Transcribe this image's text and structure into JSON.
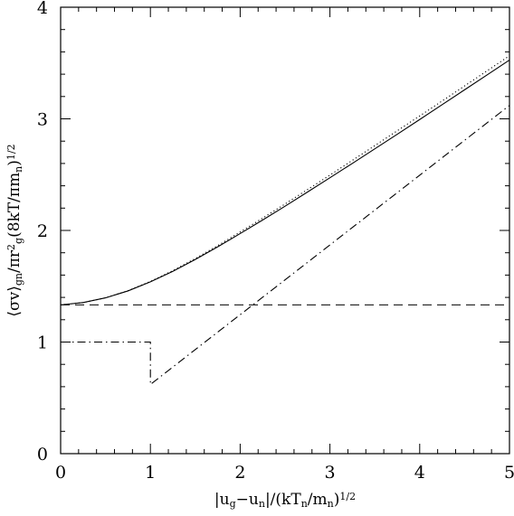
{
  "chart_data": {
    "type": "line",
    "title": "",
    "xlim": [
      0,
      5
    ],
    "ylim": [
      0,
      4
    ],
    "x_ticks": [
      0,
      1,
      2,
      3,
      4,
      5
    ],
    "y_ticks": [
      0,
      1,
      2,
      3,
      4
    ],
    "x_tick_labels": [
      "0",
      "1",
      "2",
      "3",
      "4",
      "5"
    ],
    "y_tick_labels": [
      "0",
      "1",
      "2",
      "3",
      "4"
    ],
    "xlabel_parts": [
      {
        "t": "|u",
        "s": "n"
      },
      {
        "t": "g",
        "s": "sub"
      },
      {
        "t": "−u",
        "s": "n"
      },
      {
        "t": "n",
        "s": "sub"
      },
      {
        "t": "|/(kT",
        "s": "n"
      },
      {
        "t": "n",
        "s": "sub"
      },
      {
        "t": "/m",
        "s": "n"
      },
      {
        "t": "n",
        "s": "sub"
      },
      {
        "t": ")",
        "s": "n"
      },
      {
        "t": "1/2",
        "s": "sup"
      }
    ],
    "ylabel_parts": [
      {
        "t": "⟨σv⟩",
        "s": "n"
      },
      {
        "t": "gn",
        "s": "sub"
      },
      {
        "t": "/πr",
        "s": "n"
      },
      {
        "t": "2",
        "s": "sup"
      },
      {
        "t": "g",
        "s": "sub"
      },
      {
        "t": "(8kT/πm",
        "s": "n"
      },
      {
        "t": "n",
        "s": "sub"
      },
      {
        "t": ")",
        "s": "n"
      },
      {
        "t": "1/2",
        "s": "sup"
      }
    ],
    "grid": false,
    "legend": "none",
    "series": [
      {
        "style": "solid",
        "x": [
          0,
          0.25,
          0.5,
          0.75,
          1.0,
          1.25,
          1.5,
          1.75,
          2.0,
          2.25,
          2.5,
          2.75,
          3.0,
          3.25,
          3.5,
          3.75,
          4.0,
          4.25,
          4.5,
          4.75,
          5.0
        ],
        "y": [
          1.333,
          1.354,
          1.396,
          1.458,
          1.539,
          1.634,
          1.74,
          1.853,
          1.972,
          2.093,
          2.217,
          2.344,
          2.472,
          2.601,
          2.731,
          2.862,
          2.994,
          3.127,
          3.26,
          3.393,
          3.527
        ]
      },
      {
        "style": "dotted",
        "x": [
          0,
          0.25,
          0.5,
          0.75,
          1.0,
          1.25,
          1.5,
          1.75,
          2.0,
          2.25,
          2.5,
          2.75,
          3.0,
          3.25,
          3.5,
          3.75,
          4.0,
          4.25,
          4.5,
          4.75,
          5.0
        ],
        "y": [
          1.333,
          1.354,
          1.396,
          1.46,
          1.543,
          1.64,
          1.748,
          1.864,
          1.986,
          2.11,
          2.237,
          2.366,
          2.496,
          2.628,
          2.76,
          2.893,
          3.026,
          3.16,
          3.295,
          3.43,
          3.565
        ]
      },
      {
        "style": "dashed",
        "x": [
          0,
          5
        ],
        "y": [
          1.333,
          1.333
        ]
      },
      {
        "style": "dashdot",
        "x": [
          0,
          1.0,
          1.0,
          5.0
        ],
        "y": [
          1.0,
          1.0,
          0.62,
          3.12
        ]
      }
    ]
  }
}
